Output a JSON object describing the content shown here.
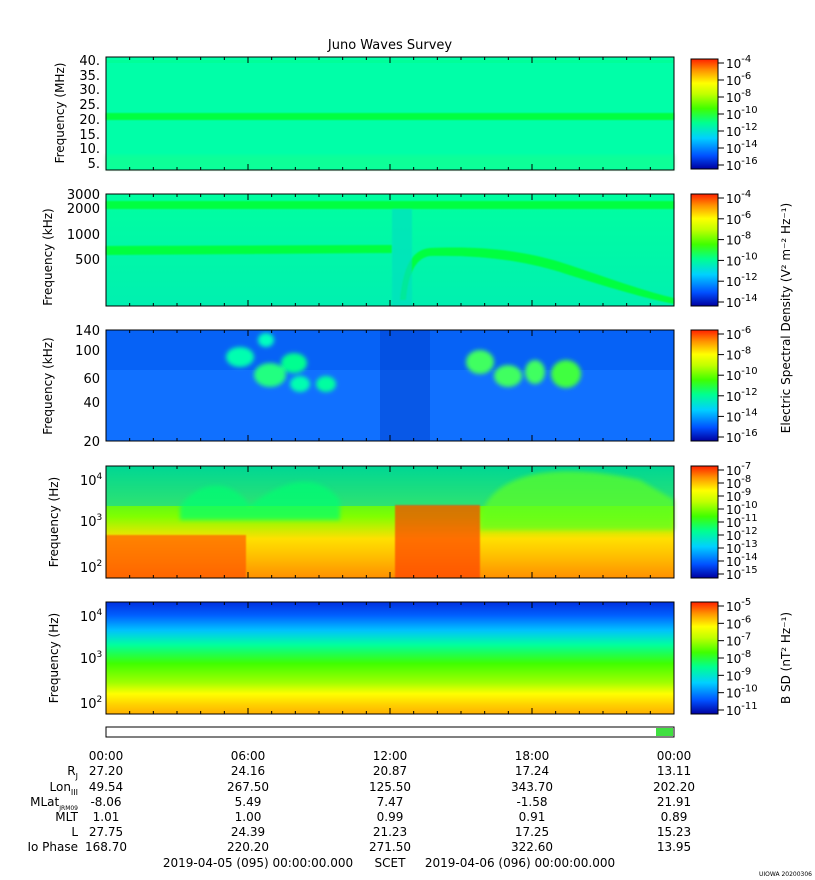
{
  "title": "Juno Waves Survey",
  "chart_data": [
    {
      "type": "heatmap",
      "panel": 1,
      "ylabel": "Frequency (MHz)",
      "yticks": [
        "40.",
        "35.",
        "30.",
        "25.",
        "20.",
        "15.",
        "10.",
        "5."
      ],
      "colorbar_ticks": [
        "-4",
        "-6",
        "-8",
        "-10",
        "-12",
        "-14",
        "-16"
      ],
      "features": [
        "narrow emission band near 21 MHz"
      ]
    },
    {
      "type": "heatmap",
      "panel": 2,
      "ylabel": "Frequency (kHz)",
      "yticks": [
        "3000",
        "2000",
        "1000",
        "500"
      ],
      "colorbar_ticks": [
        "-4",
        "-6",
        "-8",
        "-10",
        "-12",
        "-14"
      ],
      "features": [
        "band near 2000 kHz",
        "band near 650 kHz descending after 12:00"
      ]
    },
    {
      "type": "heatmap",
      "panel": 3,
      "ylabel": "Frequency (kHz)",
      "yticks": [
        "140",
        "100",
        "60",
        "40",
        "20"
      ],
      "colorbar_ticks": [
        "-6",
        "-8",
        "-10",
        "-12",
        "-14",
        "-16"
      ],
      "colorbar_label": "Electric Spectral Density (V² m⁻² Hz⁻¹)",
      "features": [
        "bursts 05:30-09:30 and 15:00-19:30 between 50-90 kHz"
      ]
    },
    {
      "type": "heatmap",
      "panel": 4,
      "ylabel": "Frequency (Hz)",
      "yticks": [
        "4",
        "3",
        "2"
      ],
      "colorbar_ticks": [
        "-7",
        "-8",
        "-9",
        "-10",
        "-11",
        "-12",
        "-13",
        "-14",
        "-15"
      ],
      "features": [
        "intense low-frequency emission",
        "envelope up to ~10^4 Hz"
      ]
    },
    {
      "type": "heatmap",
      "panel": 5,
      "ylabel": "Frequency (Hz)",
      "yticks": [
        "4",
        "3",
        "2"
      ],
      "colorbar_ticks": [
        "-5",
        "-6",
        "-7",
        "-8",
        "-9",
        "-10",
        "-11"
      ],
      "colorbar_label": "B SD (nT² Hz⁻¹)",
      "features": [
        "magnetic spectral density decreasing with frequency"
      ]
    }
  ],
  "x_axis": {
    "labels": [
      "00:00",
      "06:00",
      "12:00",
      "18:00",
      "00:00"
    ],
    "hours": [
      0,
      6,
      12,
      18,
      24
    ]
  },
  "ephemeris": [
    {
      "label": "R",
      "sub": "J",
      "values": [
        "27.20",
        "24.16",
        "20.87",
        "17.24",
        "13.11"
      ]
    },
    {
      "label": "Lon",
      "sub": "III",
      "values": [
        "49.54",
        "267.50",
        "125.50",
        "343.70",
        "202.20"
      ]
    },
    {
      "label": "MLat",
      "sub": "JRM09",
      "values": [
        "-8.06",
        "5.49",
        "7.47",
        "-1.58",
        "21.91"
      ]
    },
    {
      "label": "MLT",
      "sub": "",
      "values": [
        "1.01",
        "1.00",
        "0.99",
        "0.91",
        "0.89"
      ]
    },
    {
      "label": "L",
      "sub": "",
      "values": [
        "27.75",
        "24.39",
        "21.23",
        "17.25",
        "15.23"
      ]
    },
    {
      "label": "Io Phase",
      "sub": "",
      "values": [
        "168.70",
        "220.20",
        "271.50",
        "322.60",
        "13.95"
      ]
    }
  ],
  "footer": {
    "start": "2019-04-05 (095) 00:00:00.000",
    "scet": "SCET",
    "end": "2019-04-06 (096) 00:00:00.000"
  },
  "stamp": "UIOWA 20200306",
  "colors": {
    "cbar": [
      "#0000a0",
      "#0050ff",
      "#00d0ff",
      "#00ff90",
      "#40ff00",
      "#c0ff00",
      "#ffff00",
      "#ff9000",
      "#ff2000"
    ]
  }
}
